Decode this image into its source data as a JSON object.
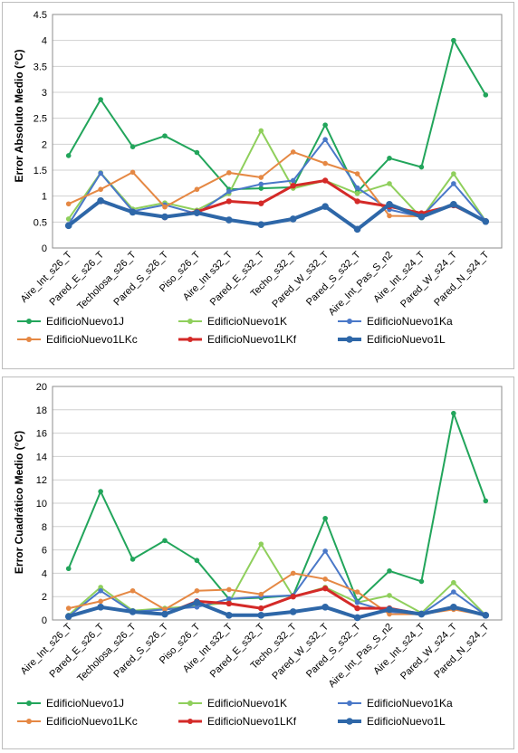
{
  "chart_data": [
    {
      "type": "line",
      "title": "",
      "xlabel": "",
      "ylabel": "Error Absoluto Medio (°C)",
      "ylim": [
        0,
        4.5
      ],
      "ystep": 0.5,
      "ytick_labels": [
        "0",
        "0.5",
        "1",
        "1.5",
        "2",
        "2.5",
        "3",
        "3.5",
        "4",
        "4.5"
      ],
      "grid": true,
      "legend_position": "bottom",
      "categories": [
        "Aire_Int_s26_T",
        "Pared_E_s26_T",
        "Techolosa_s26_T",
        "Pared_S_s26_T",
        "Piso_s26_T",
        "Aire_Int s32_T",
        "Pared_E_s32_T",
        "Techo_s32_T",
        "Pared_W_s32_T",
        "Pared_S_s32_T",
        "Aire_Int_Pas_S_n2",
        "Aire_Int_s24_T",
        "Pared_W_s24_T",
        "Pared_N_s24_T"
      ],
      "series": [
        {
          "name": "EdificioNuevo1J",
          "color": "#22a55b",
          "width": 2,
          "values": [
            1.78,
            2.86,
            1.95,
            2.16,
            1.84,
            1.13,
            1.15,
            1.17,
            2.37,
            1.08,
            1.73,
            1.56,
            4.0,
            2.95
          ]
        },
        {
          "name": "EdificioNuevo1K",
          "color": "#8fcf5c",
          "width": 2,
          "values": [
            0.56,
            1.45,
            0.75,
            0.87,
            0.73,
            1.05,
            2.26,
            1.15,
            1.3,
            1.05,
            1.24,
            0.58,
            1.43,
            0.52
          ]
        },
        {
          "name": "EdificioNuevo1Ka",
          "color": "#4a78c8",
          "width": 2,
          "values": [
            0.45,
            1.44,
            0.71,
            0.83,
            0.66,
            1.09,
            1.23,
            1.3,
            2.09,
            1.16,
            0.74,
            0.6,
            1.24,
            0.52
          ]
        },
        {
          "name": "EdificioNuevo1LKc",
          "color": "#e58844",
          "width": 2,
          "values": [
            0.85,
            1.13,
            1.46,
            0.79,
            1.13,
            1.45,
            1.36,
            1.85,
            1.63,
            1.43,
            0.62,
            0.61,
            0.82,
            0.52
          ]
        },
        {
          "name": "EdificioNuevo1LKf",
          "color": "#d42a28",
          "width": 3,
          "values": [
            0.44,
            0.9,
            0.7,
            0.59,
            0.7,
            0.9,
            0.86,
            1.2,
            1.3,
            0.9,
            0.8,
            0.67,
            0.82,
            0.52
          ]
        },
        {
          "name": "EdificioNuevo1L",
          "color": "#2e67a8",
          "width": 4,
          "values": [
            0.43,
            0.91,
            0.69,
            0.6,
            0.68,
            0.54,
            0.45,
            0.56,
            0.8,
            0.36,
            0.84,
            0.6,
            0.84,
            0.51
          ]
        }
      ]
    },
    {
      "type": "line",
      "title": "",
      "xlabel": "",
      "ylabel": "Error Cuadrático Medio (°C)",
      "ylim": [
        0,
        20
      ],
      "ystep": 2,
      "ytick_labels": [
        "0",
        "2",
        "4",
        "6",
        "8",
        "10",
        "12",
        "14",
        "16",
        "18",
        "20"
      ],
      "grid": true,
      "legend_position": "bottom",
      "categories": [
        "Aire_Int_s26_T",
        "Pared_E_s26_T",
        "Techolosa_s26_T",
        "Pared_S_s26_T",
        "Piso_s26_T",
        "Aire_Int s32_T",
        "Pared_E_s32_T",
        "Techo_s32_T",
        "Pared_W_s32_T",
        "Pared_S_s32_T",
        "Aire_Int_Pas_S_n2",
        "Aire_Int_s24_T",
        "Pared_W_s24_T",
        "Pared_N_s24_T"
      ],
      "series": [
        {
          "name": "EdificioNuevo1J",
          "color": "#22a55b",
          "width": 2,
          "values": [
            4.4,
            11.0,
            5.2,
            6.8,
            5.1,
            1.8,
            1.9,
            2.1,
            8.7,
            1.6,
            4.2,
            3.3,
            17.7,
            10.2
          ]
        },
        {
          "name": "EdificioNuevo1K",
          "color": "#8fcf5c",
          "width": 2,
          "values": [
            0.4,
            2.8,
            0.8,
            1.0,
            1.2,
            1.5,
            6.5,
            2.0,
            2.8,
            1.5,
            2.1,
            0.6,
            3.2,
            0.4
          ]
        },
        {
          "name": "EdificioNuevo1Ka",
          "color": "#4a78c8",
          "width": 2,
          "values": [
            0.3,
            2.5,
            0.7,
            0.9,
            1.1,
            1.8,
            2.0,
            2.1,
            5.9,
            1.5,
            0.7,
            0.5,
            2.4,
            0.4
          ]
        },
        {
          "name": "EdificioNuevo1LKc",
          "color": "#e58844",
          "width": 2,
          "values": [
            1.0,
            1.6,
            2.5,
            0.9,
            2.5,
            2.6,
            2.2,
            4.0,
            3.5,
            2.4,
            0.5,
            0.5,
            0.9,
            0.4
          ]
        },
        {
          "name": "EdificioNuevo1LKf",
          "color": "#d42a28",
          "width": 3,
          "values": [
            0.3,
            1.1,
            0.7,
            0.5,
            1.6,
            1.4,
            1.0,
            2.0,
            2.7,
            1.0,
            1.0,
            0.5,
            1.1,
            0.4
          ]
        },
        {
          "name": "EdificioNuevo1L",
          "color": "#2e67a8",
          "width": 4,
          "values": [
            0.3,
            1.1,
            0.7,
            0.5,
            1.5,
            0.4,
            0.4,
            0.7,
            1.1,
            0.2,
            0.9,
            0.5,
            1.1,
            0.4
          ]
        }
      ]
    }
  ]
}
